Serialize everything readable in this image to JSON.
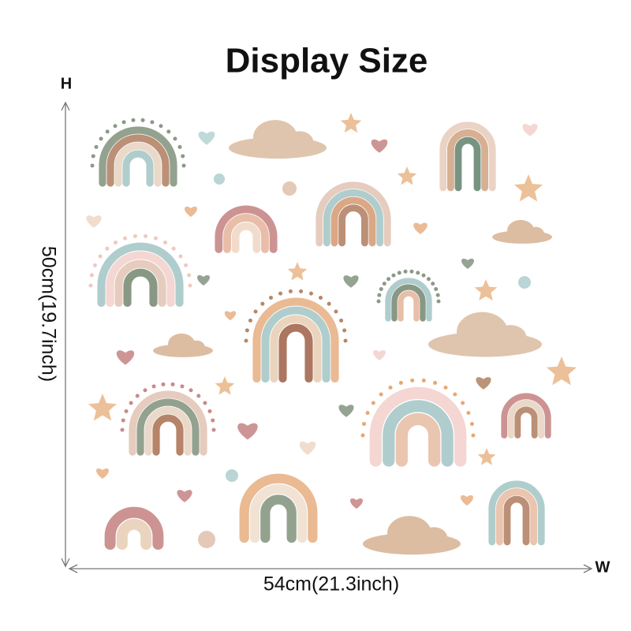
{
  "header": {
    "title": "Display Size"
  },
  "dimensions": {
    "height_marker": "H",
    "height_label": "50cm(19.7inch)",
    "width_marker": "W",
    "width_label": "54cm(21.3inch)"
  }
}
